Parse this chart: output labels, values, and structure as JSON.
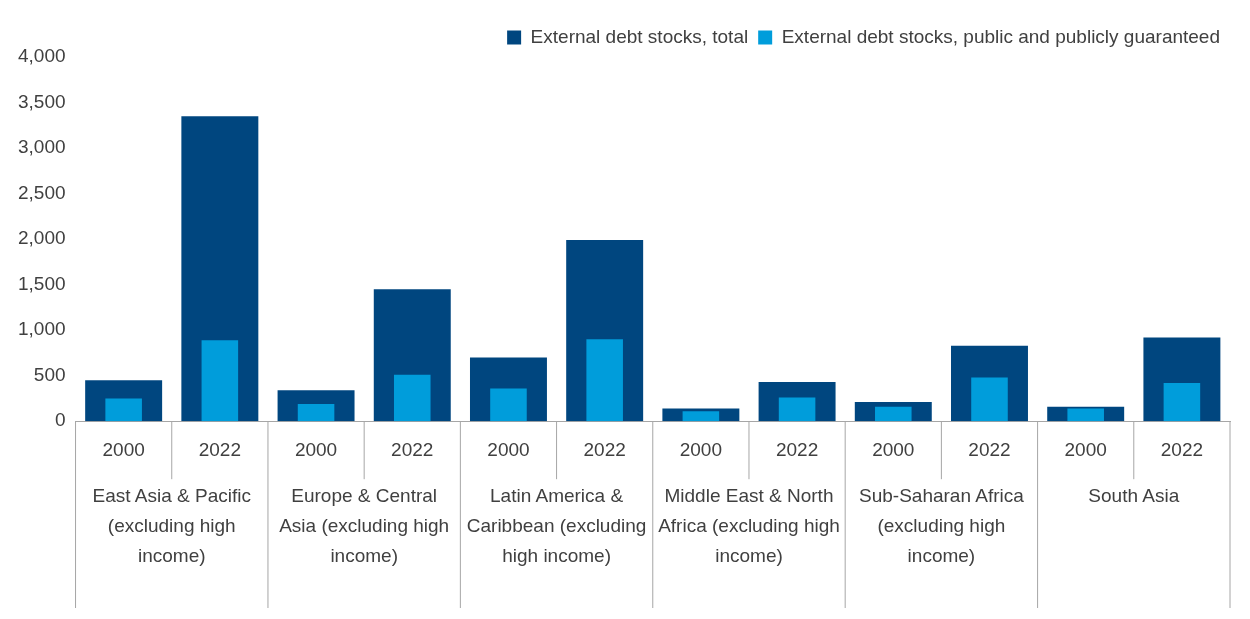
{
  "chart_data": {
    "type": "bar",
    "categories": [
      "2000",
      "2022",
      "2000",
      "2022",
      "2000",
      "2022",
      "2000",
      "2022",
      "2000",
      "2022",
      "2000",
      "2022"
    ],
    "series": [
      {
        "name": "External debt stocks, total",
        "color": "#00467f",
        "values": [
          450,
          3350,
          340,
          1450,
          700,
          1990,
          140,
          430,
          210,
          830,
          160,
          920
        ]
      },
      {
        "name": "External debt stocks, public and publicly guaranteed",
        "color": "#009ddb",
        "values": [
          250,
          890,
          190,
          510,
          360,
          900,
          110,
          260,
          160,
          480,
          140,
          420
        ]
      }
    ],
    "ylim": [
      0,
      4000
    ],
    "yticks": [
      {
        "value": 0,
        "label": "0"
      },
      {
        "value": 500,
        "label": "500"
      },
      {
        "value": 1000,
        "label": "1,000"
      },
      {
        "value": 1500,
        "label": "1,500"
      },
      {
        "value": 2000,
        "label": "2,000"
      },
      {
        "value": 2500,
        "label": "2,500"
      },
      {
        "value": 3000,
        "label": "3,000"
      },
      {
        "value": 3500,
        "label": "3,500"
      },
      {
        "value": 4000,
        "label": "4,000"
      }
    ],
    "legend": "top right",
    "annotations": [
      "East Asia & Pacific (excluding high income)",
      "Europe & Central Asia (excluding high income)",
      "Latin America & Caribbean (excluding high income)",
      "Middle East & North Africa (excluding high income)",
      "Sub-Saharan Africa (excluding high income)",
      "South Asia"
    ]
  }
}
